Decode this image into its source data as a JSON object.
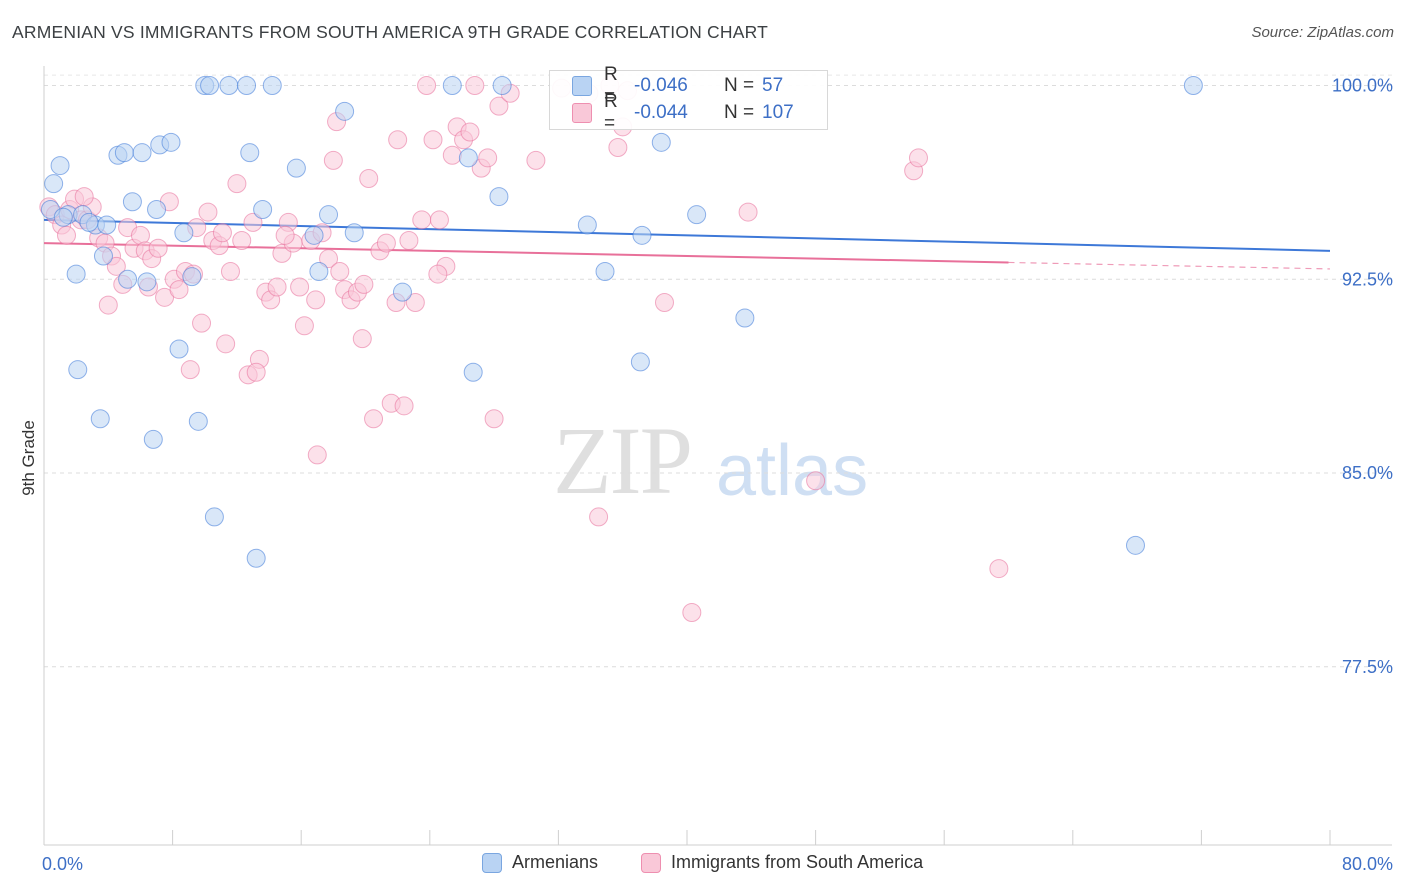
{
  "header": {
    "title": "ARMENIAN VS IMMIGRANTS FROM SOUTH AMERICA 9TH GRADE CORRELATION CHART",
    "source": "Source: ZipAtlas.com"
  },
  "watermark": {
    "zip": "ZIP",
    "atlas": "atlas"
  },
  "stats": [
    {
      "r_label": "R =",
      "r_value": "-0.046",
      "n_label": "N =",
      "n_value": "57",
      "color": "#aecbf0",
      "border": "#7aa6e0"
    },
    {
      "r_label": "R =",
      "r_value": "-0.044",
      "n_label": "N =",
      "n_value": "107",
      "color": "#f7bdd0",
      "border": "#ee8fb0"
    }
  ],
  "legend": [
    {
      "label": "Armenians",
      "color": "#b9d3f3",
      "border": "#7aa6e0"
    },
    {
      "label": "Immigrants from South America",
      "color": "#f9c8d8",
      "border": "#ee8fb0"
    }
  ],
  "chart_data": {
    "type": "scatter",
    "title": "ARMENIAN VS IMMIGRANTS FROM SOUTH AMERICA 9TH GRADE CORRELATION CHART",
    "xlabel": "",
    "ylabel": "9th Grade",
    "xlim": [
      0,
      80
    ],
    "ylim": [
      70.6,
      100.6
    ],
    "x_tick_labels": [
      "0.0%",
      "80.0%"
    ],
    "y_ticks": [
      77.5,
      85.0,
      92.5,
      100.0
    ],
    "y_tick_labels": [
      "77.5%",
      "85.0%",
      "92.5%",
      "100.0%"
    ],
    "grid": true,
    "legend_position": "bottom",
    "series": [
      {
        "name": "Armenians",
        "color": "#3d78d8",
        "fill": "#b9d3f3",
        "trend": {
          "x": [
            0,
            80
          ],
          "y": [
            94.8,
            93.6
          ],
          "dashed_from": null
        },
        "points": [
          [
            0.6,
            96.2
          ],
          [
            1.0,
            96.9
          ],
          [
            1.5,
            95.0
          ],
          [
            2.4,
            95.0
          ],
          [
            3.2,
            94.6
          ],
          [
            3.9,
            94.6
          ],
          [
            4.6,
            97.3
          ],
          [
            5.0,
            97.4
          ],
          [
            6.1,
            97.4
          ],
          [
            2.0,
            92.7
          ],
          [
            5.2,
            92.5
          ],
          [
            6.4,
            92.4
          ],
          [
            7.2,
            97.7
          ],
          [
            7.9,
            97.8
          ],
          [
            5.5,
            95.5
          ],
          [
            7.0,
            95.2
          ],
          [
            8.7,
            94.3
          ],
          [
            9.2,
            92.6
          ],
          [
            10.0,
            100.0
          ],
          [
            10.3,
            100.0
          ],
          [
            11.5,
            100.0
          ],
          [
            12.6,
            100.0
          ],
          [
            14.2,
            100.0
          ],
          [
            12.8,
            97.4
          ],
          [
            13.6,
            95.2
          ],
          [
            15.7,
            96.8
          ],
          [
            17.7,
            95.0
          ],
          [
            18.7,
            99.0
          ],
          [
            19.3,
            94.3
          ],
          [
            17.1,
            92.8
          ],
          [
            16.8,
            94.2
          ],
          [
            22.3,
            92.0
          ],
          [
            25.4,
            100.0
          ],
          [
            28.5,
            100.0
          ],
          [
            26.4,
            97.2
          ],
          [
            28.3,
            95.7
          ],
          [
            33.8,
            94.6
          ],
          [
            34.9,
            92.8
          ],
          [
            37.1,
            89.3
          ],
          [
            37.2,
            94.2
          ],
          [
            38.4,
            97.8
          ],
          [
            40.6,
            95.0
          ],
          [
            43.6,
            91.0
          ],
          [
            2.1,
            89.0
          ],
          [
            3.5,
            87.1
          ],
          [
            9.6,
            87.0
          ],
          [
            8.4,
            89.8
          ],
          [
            6.8,
            86.3
          ],
          [
            10.6,
            83.3
          ],
          [
            13.2,
            81.7
          ],
          [
            26.7,
            88.9
          ],
          [
            67.9,
            82.2
          ],
          [
            71.5,
            100.0
          ],
          [
            0.4,
            95.2
          ],
          [
            1.2,
            94.9
          ],
          [
            2.8,
            94.7
          ],
          [
            3.7,
            93.4
          ]
        ]
      },
      {
        "name": "Immigrants from South America",
        "color": "#e8709a",
        "fill": "#f9c8d8",
        "trend": {
          "x": [
            0,
            80
          ],
          "y": [
            93.9,
            92.9
          ],
          "dashed_from": 60
        },
        "points": [
          [
            0.3,
            95.3
          ],
          [
            0.7,
            95.0
          ],
          [
            1.1,
            94.6
          ],
          [
            1.6,
            95.2
          ],
          [
            1.9,
            95.6
          ],
          [
            2.3,
            94.8
          ],
          [
            2.7,
            94.8
          ],
          [
            3.0,
            95.3
          ],
          [
            3.4,
            94.1
          ],
          [
            3.8,
            93.9
          ],
          [
            4.2,
            93.4
          ],
          [
            4.5,
            93.0
          ],
          [
            4.9,
            92.3
          ],
          [
            5.2,
            94.5
          ],
          [
            5.6,
            93.7
          ],
          [
            6.0,
            94.2
          ],
          [
            6.3,
            93.6
          ],
          [
            6.7,
            93.3
          ],
          [
            7.1,
            93.7
          ],
          [
            7.5,
            91.8
          ],
          [
            7.8,
            95.5
          ],
          [
            8.1,
            92.5
          ],
          [
            8.4,
            92.1
          ],
          [
            8.8,
            92.8
          ],
          [
            9.1,
            89.0
          ],
          [
            9.5,
            94.5
          ],
          [
            9.8,
            90.8
          ],
          [
            10.2,
            95.1
          ],
          [
            10.5,
            94.0
          ],
          [
            10.9,
            93.8
          ],
          [
            11.3,
            90.0
          ],
          [
            11.6,
            92.8
          ],
          [
            12.0,
            96.2
          ],
          [
            12.3,
            94.0
          ],
          [
            12.7,
            88.8
          ],
          [
            13.0,
            94.7
          ],
          [
            13.4,
            89.4
          ],
          [
            13.8,
            92.0
          ],
          [
            14.1,
            91.7
          ],
          [
            14.5,
            92.2
          ],
          [
            14.8,
            93.5
          ],
          [
            15.2,
            94.7
          ],
          [
            15.5,
            93.9
          ],
          [
            15.9,
            92.2
          ],
          [
            16.2,
            90.7
          ],
          [
            16.6,
            94.0
          ],
          [
            17.0,
            85.7
          ],
          [
            17.3,
            94.3
          ],
          [
            17.7,
            93.3
          ],
          [
            18.0,
            97.1
          ],
          [
            18.4,
            92.8
          ],
          [
            18.7,
            92.1
          ],
          [
            19.1,
            91.7
          ],
          [
            19.5,
            92.0
          ],
          [
            19.8,
            90.2
          ],
          [
            20.2,
            96.4
          ],
          [
            20.5,
            87.1
          ],
          [
            20.9,
            93.6
          ],
          [
            21.3,
            93.9
          ],
          [
            21.6,
            87.7
          ],
          [
            22.0,
            97.9
          ],
          [
            22.4,
            87.6
          ],
          [
            22.7,
            94.0
          ],
          [
            23.1,
            91.6
          ],
          [
            23.5,
            94.8
          ],
          [
            23.8,
            100.0
          ],
          [
            24.2,
            97.9
          ],
          [
            24.6,
            94.8
          ],
          [
            25.0,
            93.0
          ],
          [
            25.4,
            97.3
          ],
          [
            25.7,
            98.4
          ],
          [
            26.1,
            97.9
          ],
          [
            26.5,
            98.2
          ],
          [
            26.8,
            100.0
          ],
          [
            27.2,
            96.8
          ],
          [
            27.6,
            97.2
          ],
          [
            28.0,
            87.1
          ],
          [
            28.3,
            99.2
          ],
          [
            29.0,
            99.7
          ],
          [
            30.6,
            97.1
          ],
          [
            32.2,
            99.9
          ],
          [
            33.9,
            99.7
          ],
          [
            34.5,
            83.3
          ],
          [
            35.2,
            100.0
          ],
          [
            36.3,
            99.8
          ],
          [
            38.6,
            91.6
          ],
          [
            40.3,
            79.6
          ],
          [
            43.8,
            95.1
          ],
          [
            48.0,
            84.7
          ],
          [
            54.1,
            96.7
          ],
          [
            54.4,
            97.2
          ],
          [
            59.4,
            81.3
          ],
          [
            1.4,
            94.2
          ],
          [
            2.5,
            95.7
          ],
          [
            4.0,
            91.5
          ],
          [
            6.5,
            92.2
          ],
          [
            9.3,
            92.7
          ],
          [
            11.1,
            94.3
          ],
          [
            13.2,
            88.9
          ],
          [
            15.0,
            94.2
          ],
          [
            16.9,
            91.7
          ],
          [
            18.2,
            98.6
          ],
          [
            19.9,
            92.3
          ],
          [
            21.9,
            91.6
          ],
          [
            24.5,
            92.7
          ],
          [
            36.0,
            98.4
          ],
          [
            35.7,
            97.6
          ]
        ]
      }
    ]
  }
}
